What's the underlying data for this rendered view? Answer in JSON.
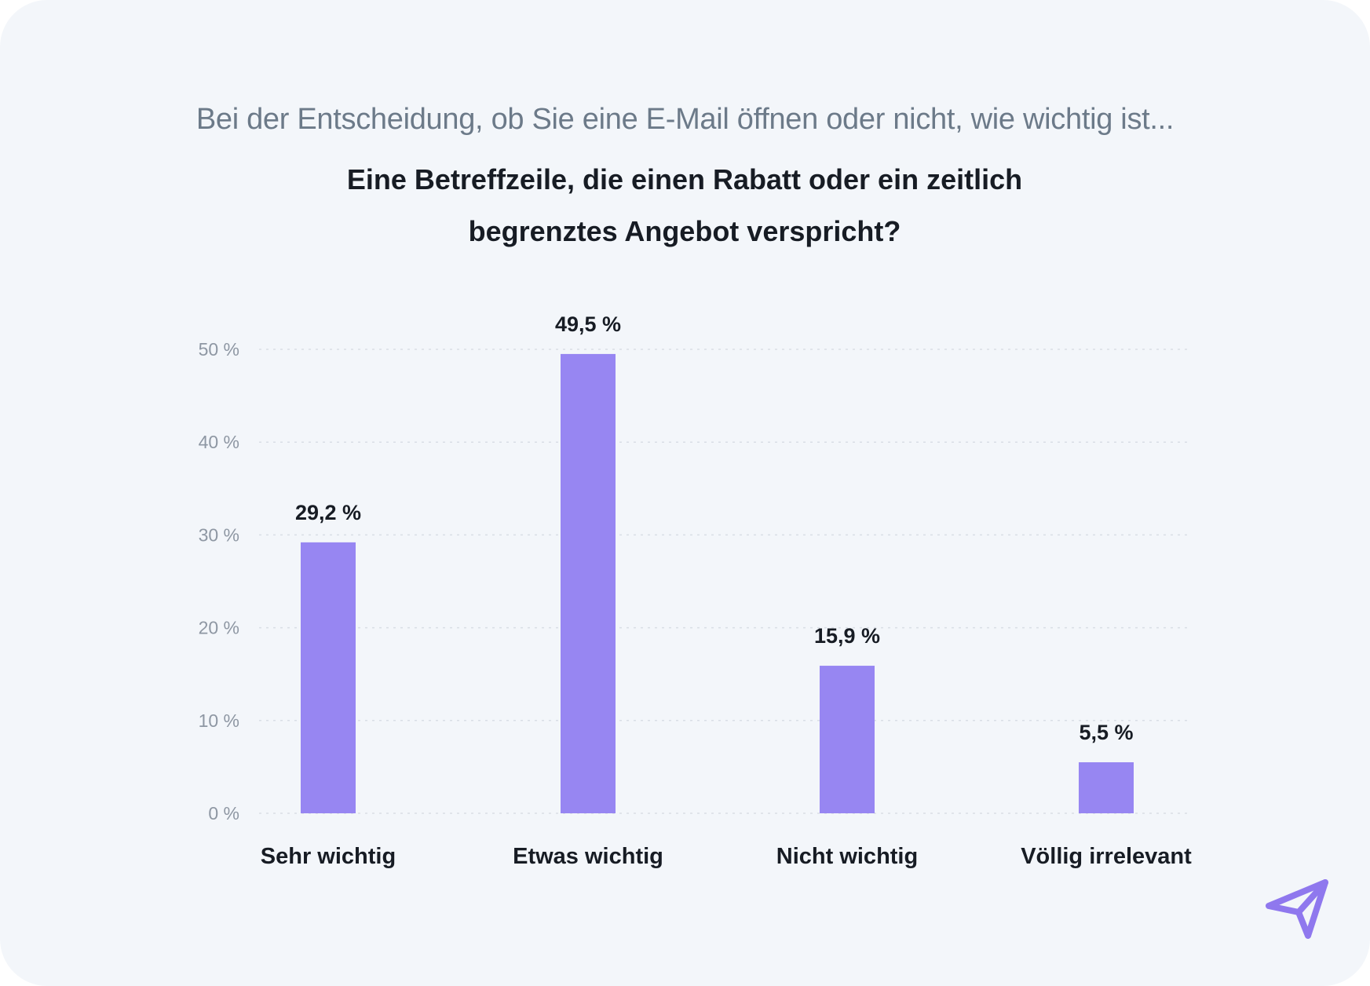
{
  "header": {
    "subtitle": "Bei der Entscheidung, ob Sie eine E-Mail öffnen oder nicht, wie wichtig ist...",
    "title": "Eine Betreffzeile, die einen Rabatt oder ein zeitlich begrenztes Angebot verspricht?"
  },
  "colors": {
    "bar": "#9786f2",
    "background": "#f3f6fa",
    "gridline": "#d9dee5",
    "tick_label": "#8e97a3",
    "label": "#171c24",
    "logo": "#8f78ee"
  },
  "logo": {
    "icon": "paper-plane-icon"
  },
  "chart_data": {
    "type": "bar",
    "title": "Eine Betreffzeile, die einen Rabatt oder ein zeitlich begrenztes Angebot verspricht?",
    "subtitle": "Bei der Entscheidung, ob Sie eine E-Mail öffnen oder nicht, wie wichtig ist...",
    "categories": [
      "Sehr wichtig",
      "Etwas wichtig",
      "Nicht wichtig",
      "Völlig irrelevant"
    ],
    "values": [
      29.2,
      49.5,
      15.9,
      5.5
    ],
    "value_labels": [
      "29,2 %",
      "49,5 %",
      "15,9 %",
      "5,5 %"
    ],
    "ylim": [
      0,
      50
    ],
    "yticks": [
      0,
      10,
      20,
      30,
      40,
      50
    ],
    "ytick_labels": [
      "0 %",
      "10 %",
      "20 %",
      "30 %",
      "40 %",
      "50 %"
    ],
    "xlabel": "",
    "ylabel": "",
    "grid": true,
    "legend": "none"
  }
}
